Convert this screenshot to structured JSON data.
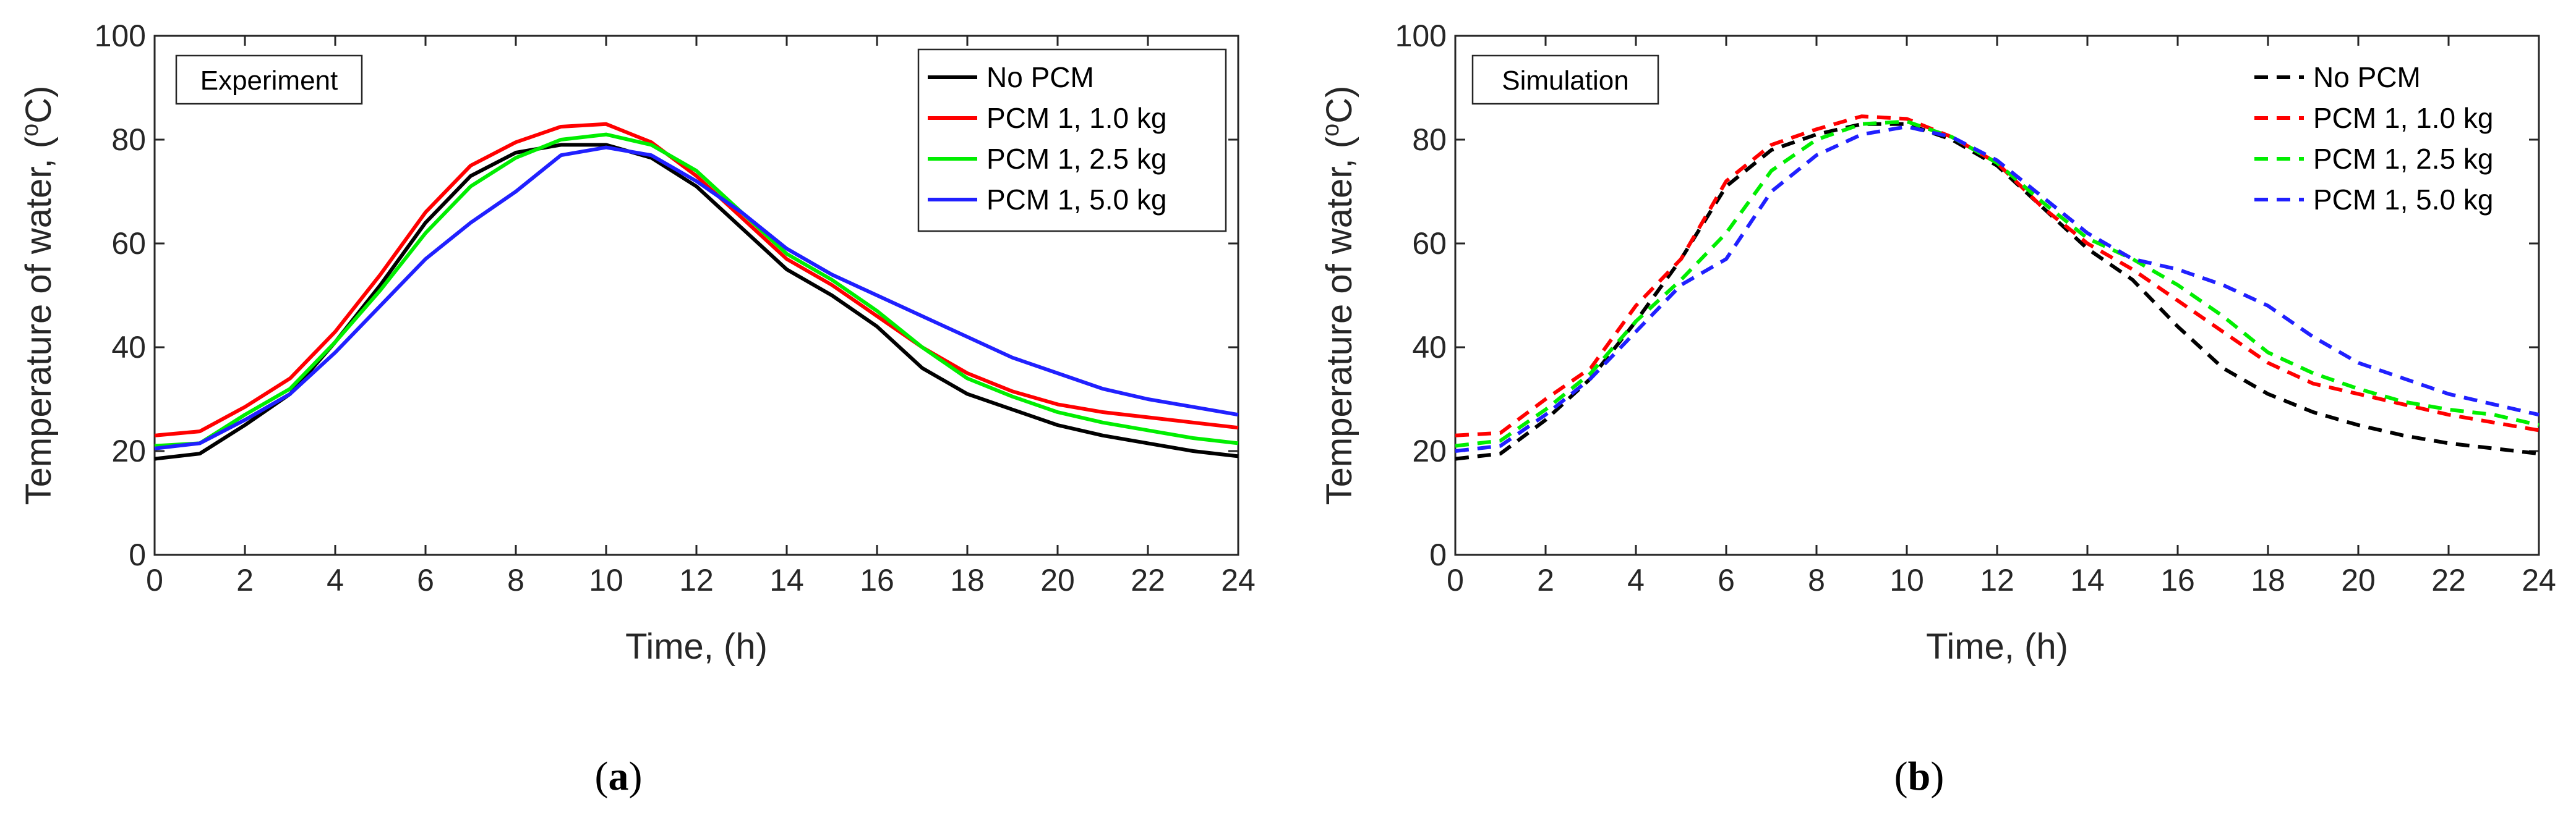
{
  "chart_data": [
    {
      "type": "line",
      "panel_label": "Experiment",
      "caption_open": "(",
      "caption_letter": "a",
      "caption_close": ")",
      "xlabel": "Time, (h)",
      "ylabel_prefix": "Temperature of water, (",
      "ylabel_sup": "o",
      "ylabel_suffix": "C)",
      "xlim": [
        0,
        24
      ],
      "ylim": [
        0,
        100
      ],
      "xticks": [
        0,
        2,
        4,
        6,
        8,
        10,
        12,
        14,
        16,
        18,
        20,
        22,
        24
      ],
      "yticks": [
        0,
        20,
        40,
        60,
        80,
        100
      ],
      "line_style": "solid",
      "legend_position": "top-right",
      "x": [
        0,
        1,
        2,
        3,
        4,
        5,
        6,
        7,
        8,
        9,
        10,
        11,
        12,
        13,
        14,
        15,
        16,
        17,
        18,
        19,
        20,
        21,
        22,
        23,
        24
      ],
      "series": [
        {
          "name": "No PCM",
          "color": "#000000",
          "values": [
            18.5,
            19.5,
            25,
            31,
            41,
            52,
            64,
            73,
            77.5,
            79,
            79,
            76.5,
            71,
            63,
            55,
            50,
            44,
            36,
            31,
            28,
            25,
            23,
            21.5,
            20,
            19
          ]
        },
        {
          "name": "PCM 1, 1.0 kg",
          "color": "#ff0000",
          "values": [
            23,
            23.8,
            28.5,
            34,
            43,
            54,
            66,
            75,
            79.5,
            82.5,
            83,
            79.5,
            73,
            65,
            57,
            52,
            46,
            40,
            35,
            31.5,
            29,
            27.5,
            26.5,
            25.5,
            24.5
          ]
        },
        {
          "name": "PCM 1, 2.5 kg",
          "color": "#00ee00",
          "values": [
            21,
            21.5,
            27,
            32,
            41,
            51,
            62,
            71,
            76.5,
            80,
            81,
            79,
            74,
            66,
            58,
            53,
            47,
            40,
            34,
            30.5,
            27.5,
            25.5,
            24,
            22.5,
            21.5
          ]
        },
        {
          "name": "PCM 1, 5.0 kg",
          "color": "#2020ff",
          "values": [
            20.5,
            21.5,
            26,
            31,
            39,
            48,
            57,
            64,
            70,
            77,
            78.5,
            77,
            72,
            66,
            59,
            54,
            50,
            46,
            42,
            38,
            35,
            32,
            30,
            28.5,
            27
          ]
        }
      ]
    },
    {
      "type": "line",
      "panel_label": "Simulation",
      "caption_open": "(",
      "caption_letter": "b",
      "caption_close": ")",
      "xlabel": "Time, (h)",
      "ylabel_prefix": "Temperature of water, (",
      "ylabel_sup": "o",
      "ylabel_suffix": "C)",
      "xlim": [
        0,
        24
      ],
      "ylim": [
        0,
        100
      ],
      "xticks": [
        0,
        2,
        4,
        6,
        8,
        10,
        12,
        14,
        16,
        18,
        20,
        22,
        24
      ],
      "yticks": [
        0,
        20,
        40,
        60,
        80,
        100
      ],
      "line_style": "dashed",
      "legend_position": "top-right",
      "x": [
        0,
        1,
        2,
        3,
        4,
        5,
        6,
        7,
        8,
        9,
        10,
        11,
        12,
        13,
        14,
        15,
        16,
        17,
        18,
        19,
        20,
        21,
        22,
        23,
        24
      ],
      "series": [
        {
          "name": "No PCM",
          "color": "#000000",
          "values": [
            18.5,
            19.5,
            26,
            34,
            45,
            57,
            71,
            78,
            81,
            83,
            83,
            80,
            75,
            67,
            59,
            53,
            44,
            36,
            31,
            27.5,
            25,
            23,
            21.5,
            20.5,
            19.5
          ]
        },
        {
          "name": "PCM 1, 1.0 kg",
          "color": "#ff0000",
          "values": [
            23,
            23.5,
            30,
            36,
            48,
            57,
            72,
            79,
            82,
            84.5,
            84,
            80.5,
            75.5,
            67,
            60,
            55,
            49,
            43,
            37,
            33,
            31,
            29,
            27,
            25.5,
            24
          ]
        },
        {
          "name": "PCM 1, 2.5 kg",
          "color": "#00ee00",
          "values": [
            21,
            22,
            28,
            35,
            45,
            53,
            62,
            74,
            80,
            83,
            83.5,
            80.5,
            75.5,
            68,
            61,
            57,
            52,
            46,
            39,
            35,
            32,
            29.5,
            28,
            27,
            25
          ]
        },
        {
          "name": "PCM 1, 5.0 kg",
          "color": "#2020ff",
          "values": [
            20,
            21,
            27,
            34,
            43,
            52,
            57,
            70,
            77,
            81,
            82.5,
            80.5,
            76,
            69,
            62,
            57,
            55,
            52,
            48,
            42,
            37,
            34,
            31,
            29,
            27
          ]
        }
      ]
    }
  ]
}
